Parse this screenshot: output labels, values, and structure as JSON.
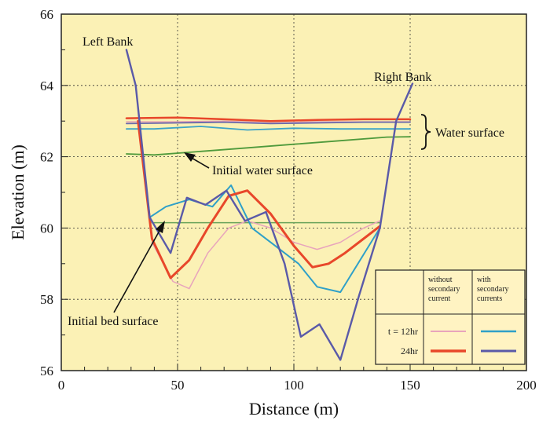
{
  "chart_data": {
    "type": "line",
    "xlabel": "Distance (m)",
    "ylabel": "Elevation (m)",
    "xlim": [
      0,
      200
    ],
    "ylim": [
      56,
      66
    ],
    "x_ticks": [
      0,
      50,
      100,
      150,
      200
    ],
    "y_ticks": [
      56,
      58,
      60,
      62,
      64,
      66
    ],
    "grid": true,
    "background_color": "#fbf1b5",
    "series": [
      {
        "key": "bed_initial",
        "color": "#6aa35a",
        "width": 1.5,
        "x": [
          39,
          60,
          80,
          100,
          120,
          137
        ],
        "y": [
          60.15,
          60.15,
          60.15,
          60.15,
          60.15,
          60.15
        ]
      },
      {
        "key": "water_initial",
        "color": "#4f9a3c",
        "width": 1.8,
        "x": [
          28,
          40,
          60,
          80,
          100,
          120,
          140,
          150
        ],
        "y": [
          62.08,
          62.05,
          62.15,
          62.25,
          62.35,
          62.45,
          62.55,
          62.56
        ]
      },
      {
        "key": "ws_12_without",
        "color": "#e4a0b4",
        "width": 1.5,
        "x": [
          28,
          50,
          70,
          90,
          110,
          130,
          150
        ],
        "y": [
          62.98,
          62.98,
          63.0,
          62.95,
          62.98,
          62.98,
          62.98
        ]
      },
      {
        "key": "ws_12_with",
        "color": "#3aa3c8",
        "width": 1.8,
        "x": [
          28,
          40,
          60,
          80,
          100,
          120,
          150
        ],
        "y": [
          62.78,
          62.78,
          62.85,
          62.75,
          62.8,
          62.78,
          62.78
        ]
      },
      {
        "key": "ws_24_with",
        "color": "#6a6aaa",
        "width": 1.8,
        "x": [
          28,
          50,
          70,
          90,
          110,
          130,
          150
        ],
        "y": [
          62.93,
          62.95,
          62.97,
          62.93,
          62.95,
          62.97,
          62.97
        ]
      },
      {
        "key": "ws_24_without",
        "color": "#e8472a",
        "width": 2.5,
        "x": [
          28,
          50,
          70,
          90,
          110,
          130,
          150
        ],
        "y": [
          63.08,
          63.1,
          63.05,
          63.0,
          63.03,
          63.05,
          63.05
        ]
      },
      {
        "key": "bed_12_without",
        "color": "#e8a4bc",
        "width": 1.5,
        "x": [
          39,
          48,
          55,
          63,
          72,
          80,
          90,
          100,
          110,
          120,
          130,
          137
        ],
        "y": [
          59.6,
          58.5,
          58.3,
          59.3,
          60.0,
          60.2,
          60.0,
          59.6,
          59.4,
          59.6,
          60.0,
          60.2
        ]
      },
      {
        "key": "bed_12_with",
        "color": "#2fa0c8",
        "width": 2,
        "x": [
          38,
          45,
          55,
          65,
          73,
          82,
          92,
          102,
          110,
          120,
          137
        ],
        "y": [
          60.3,
          60.6,
          60.8,
          60.6,
          61.2,
          60.0,
          59.5,
          59.0,
          58.35,
          58.2,
          60.0
        ]
      },
      {
        "key": "bed_24_without",
        "color": "#e8472a",
        "width": 3,
        "x": [
          33,
          39,
          47,
          55,
          63,
          72,
          80,
          90,
          100,
          108,
          115,
          122,
          130,
          137
        ],
        "y": [
          63.0,
          59.7,
          58.6,
          59.1,
          60.0,
          60.9,
          61.05,
          60.4,
          59.5,
          58.9,
          59.0,
          59.3,
          59.7,
          60.05
        ]
      },
      {
        "key": "bed_24_with",
        "color": "#5a5aa8",
        "width": 2.4,
        "x": [
          28,
          32,
          38,
          47,
          54,
          62,
          71,
          79,
          88,
          96,
          103,
          111,
          120,
          128,
          137,
          144,
          151
        ],
        "y": [
          65.0,
          64.0,
          60.3,
          59.3,
          60.85,
          60.65,
          61.05,
          60.2,
          60.45,
          59.0,
          56.95,
          57.3,
          56.3,
          58.1,
          60.0,
          63.0,
          64.05
        ]
      }
    ],
    "annotations": {
      "left_bank": "Left Bank",
      "right_bank": "Right Bank",
      "water_surface": "Water surface",
      "initial_water_surface": "Initial water surface",
      "initial_bed_surface": "Initial bed surface"
    },
    "legend": {
      "position": "bottom-right",
      "col_without": [
        "without",
        "secondary",
        "current"
      ],
      "col_with": [
        "with",
        "secondary",
        "currents"
      ],
      "rows": [
        {
          "label": "t = 12hr",
          "without_color": "#e8a4bc",
          "with_color": "#2fa0c8"
        },
        {
          "label": "24hr",
          "without_color": "#e8472a",
          "with_color": "#5a5aa8"
        }
      ]
    }
  }
}
